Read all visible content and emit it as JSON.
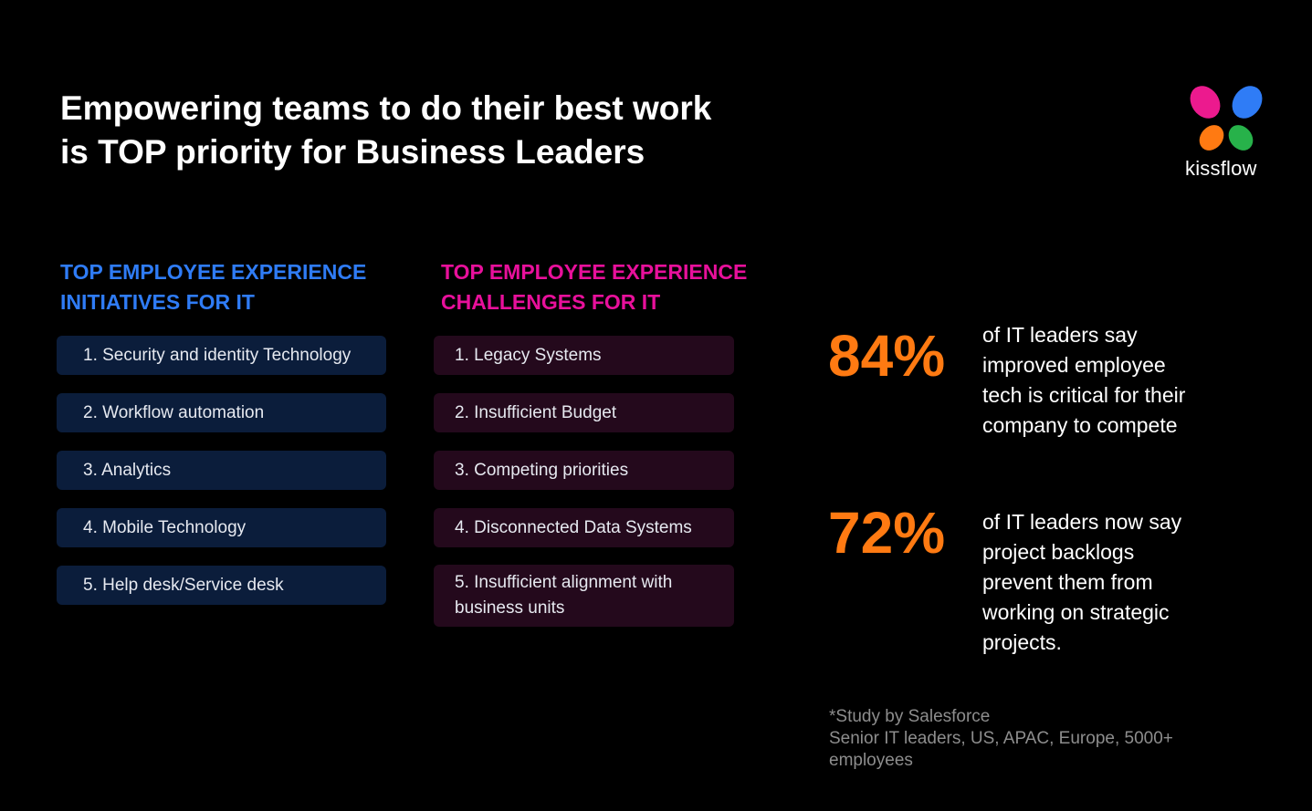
{
  "title": {
    "line1": "Empowering teams to do their best work",
    "line2": "is TOP priority for Business Leaders"
  },
  "logo": {
    "text": "kissflow",
    "icon": "butterfly-logo-icon",
    "colors": {
      "pink": "#ec1a8e",
      "blue": "#2f7cf6",
      "orange": "#ff7a12",
      "green": "#27b24a"
    }
  },
  "initiatives": {
    "heading_line1": "TOP EMPLOYEE EXPERIENCE",
    "heading_line2": "INITIATIVES FOR IT",
    "items": [
      "1. Security and identity Technology",
      "2. Workflow automation",
      "3. Analytics",
      "4. Mobile Technology",
      "5. Help desk/Service desk"
    ]
  },
  "challenges": {
    "heading_line1": "TOP EMPLOYEE EXPERIENCE",
    "heading_line2": "CHALLENGES FOR IT",
    "items": [
      "1. Legacy Systems",
      "2. Insufficient Budget",
      "3. Competing priorities",
      "4. Disconnected Data Systems",
      "5. Insufficient alignment with business units"
    ]
  },
  "stats": [
    {
      "value": "84%",
      "lines": [
        "of IT leaders say",
        "improved employee",
        "tech is critical for their",
        "company to compete"
      ]
    },
    {
      "value": "72%",
      "lines": [
        "of IT leaders now say",
        "project backlogs",
        "prevent them from",
        "working on strategic",
        "projects."
      ]
    }
  ],
  "footnote": {
    "line1": "*Study by Salesforce",
    "line2": "Senior IT leaders, US, APAC, Europe, 5000+",
    "line3": "employees"
  },
  "colors": {
    "background": "#000000",
    "initiatives_accent": "#2f7cf6",
    "challenges_accent": "#e8109b",
    "stat_accent": "#ff7a12"
  }
}
